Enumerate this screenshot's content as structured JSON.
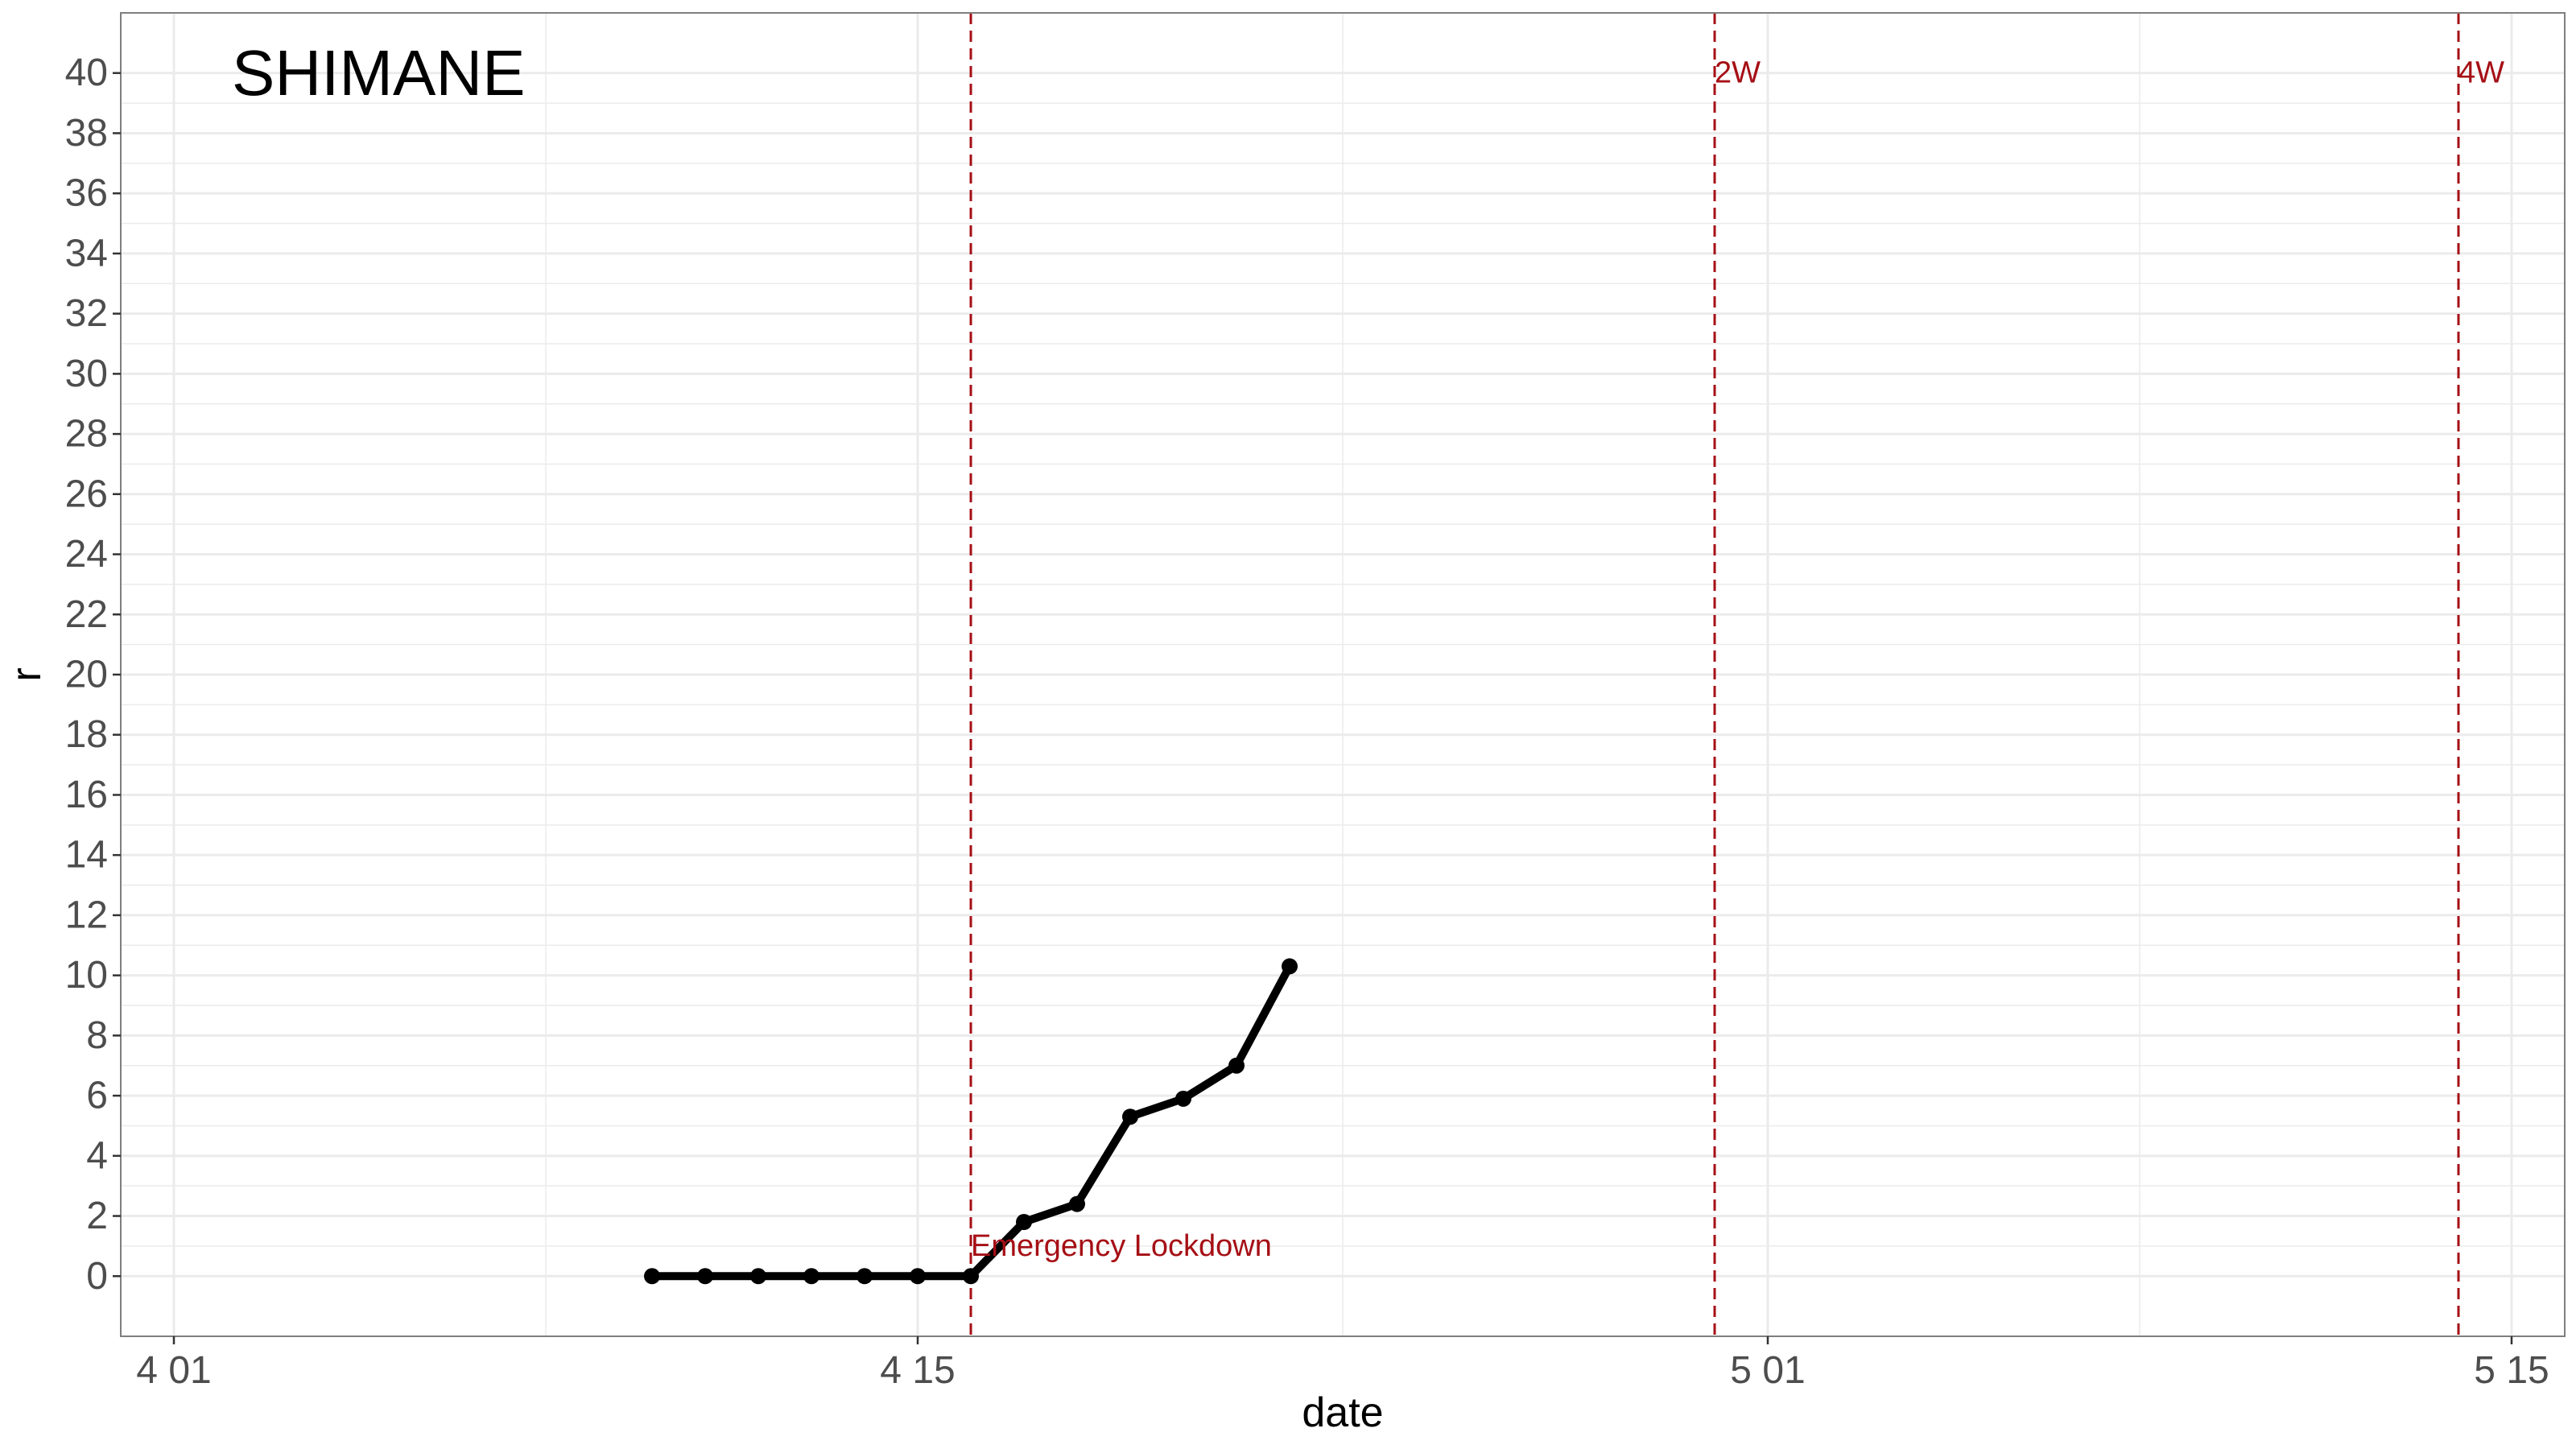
{
  "chart_data": {
    "type": "line",
    "title": "SHIMANE",
    "xlabel": "date",
    "ylabel": "r",
    "x_ticks": [
      "4 01",
      "4 15",
      "5 01",
      "5 15"
    ],
    "x_tick_dates": [
      "2020-04-01",
      "2020-04-15",
      "2020-05-01",
      "2020-05-15"
    ],
    "xlim": [
      "2020-03-31",
      "2020-05-16"
    ],
    "ylim": [
      -2,
      42
    ],
    "y_ticks": [
      0,
      2,
      4,
      6,
      8,
      10,
      12,
      14,
      16,
      18,
      20,
      22,
      24,
      26,
      28,
      30,
      32,
      34,
      36,
      38,
      40
    ],
    "grid": true,
    "series": [
      {
        "color": "#000000",
        "points": [
          {
            "x": "2020-04-10",
            "y": 0
          },
          {
            "x": "2020-04-11",
            "y": 0
          },
          {
            "x": "2020-04-12",
            "y": 0
          },
          {
            "x": "2020-04-13",
            "y": 0
          },
          {
            "x": "2020-04-14",
            "y": 0
          },
          {
            "x": "2020-04-15",
            "y": 0
          },
          {
            "x": "2020-04-16",
            "y": 0
          },
          {
            "x": "2020-04-17",
            "y": 1.8
          },
          {
            "x": "2020-04-18",
            "y": 2.4
          },
          {
            "x": "2020-04-19",
            "y": 5.3
          },
          {
            "x": "2020-04-20",
            "y": 5.9
          },
          {
            "x": "2020-04-21",
            "y": 7.0
          },
          {
            "x": "2020-04-22",
            "y": 10.3
          }
        ]
      }
    ],
    "vlines": [
      {
        "x": "2020-04-16",
        "label": "Emergency Lockdown",
        "label_y": 1
      },
      {
        "x": "2020-04-30",
        "label": "2W",
        "label_y": 40
      },
      {
        "x": "2020-05-14",
        "label": "4W",
        "label_y": 40
      }
    ],
    "colors": {
      "line": "#000000",
      "vline": "#a50f15",
      "annotation": "#a50f15",
      "grid": "#ebebeb",
      "panel_border": "#7f7f7f"
    }
  }
}
